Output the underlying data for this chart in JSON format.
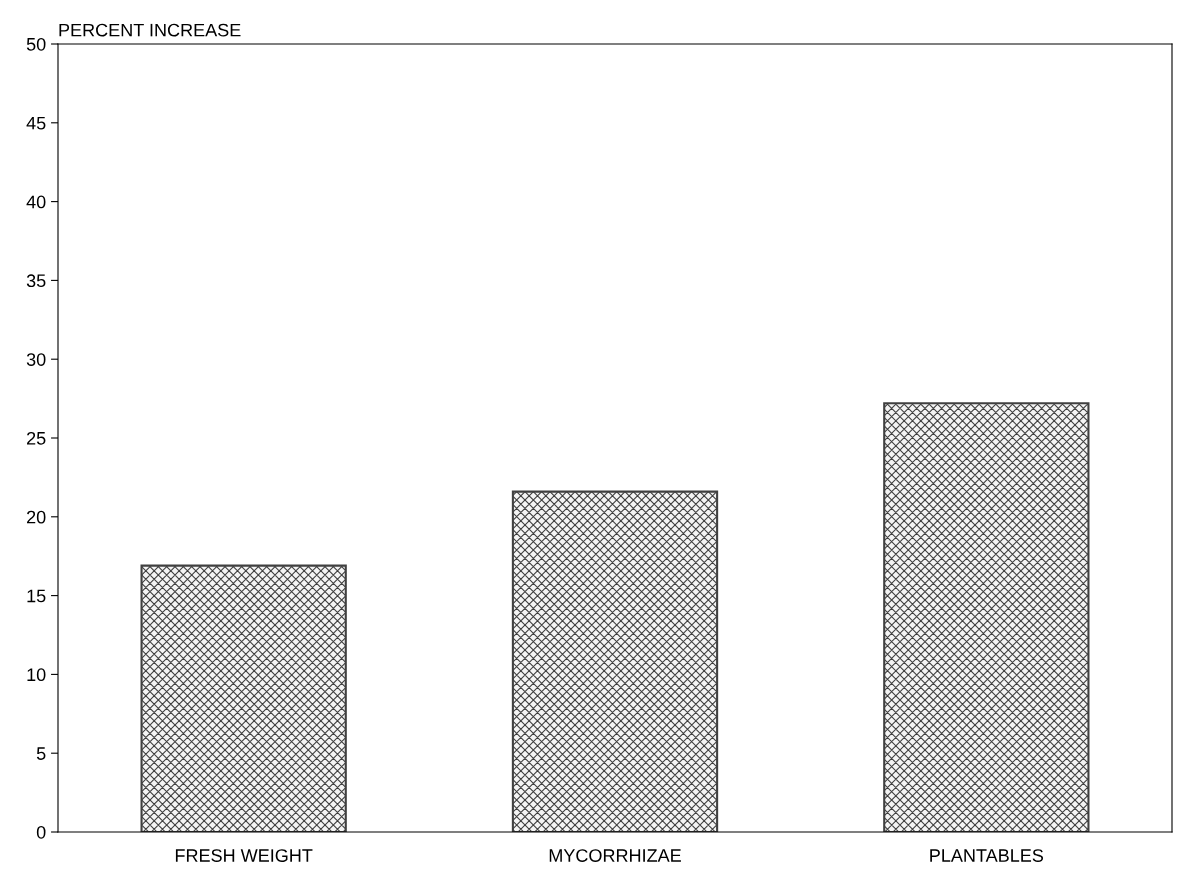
{
  "chart_data": {
    "type": "bar",
    "ylabel": "PERCENT INCREASE",
    "categories": [
      "FRESH WEIGHT",
      "MYCORRHIZAE",
      "PLANTABLES"
    ],
    "values": [
      16.9,
      21.6,
      27.2
    ],
    "color": "#404040",
    "ylim": [
      0,
      50
    ],
    "yticks": [
      0,
      5,
      10,
      15,
      20,
      25,
      30,
      35,
      40,
      45,
      50
    ],
    "grid": false
  }
}
